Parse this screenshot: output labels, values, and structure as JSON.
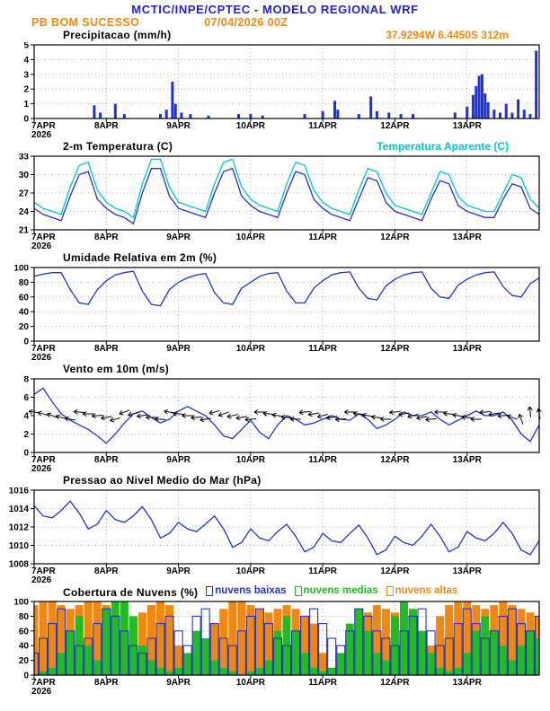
{
  "header": {
    "title": "MCTIC/INPE/CPTEC - MODELO REGIONAL WRF",
    "station": "PB BOM SUCESSO",
    "run": "07/04/2026 00Z",
    "location": "37.9294W 6.4450S 312m"
  },
  "time_axis": {
    "hours_total": 168,
    "tick_hours": [
      0,
      24,
      48,
      72,
      96,
      120,
      144
    ],
    "tick_labels": [
      "7APR",
      "8APR",
      "9APR",
      "10APR",
      "11APR",
      "12APR",
      "13APR"
    ],
    "year_label": "2026"
  },
  "chart_data": [
    {
      "id": "precipitation",
      "type": "bar",
      "title": "Precipitacao (mm/h)",
      "ylim": [
        0,
        5
      ],
      "yticks": [
        0,
        1,
        2,
        3,
        4,
        5
      ],
      "color": "#2233cc",
      "points": [
        {
          "h": 20,
          "v": 0.9
        },
        {
          "h": 22,
          "v": 0.4
        },
        {
          "h": 27,
          "v": 1.0
        },
        {
          "h": 30,
          "v": 0.3
        },
        {
          "h": 42,
          "v": 0.3
        },
        {
          "h": 44,
          "v": 0.6
        },
        {
          "h": 46,
          "v": 2.5
        },
        {
          "h": 47,
          "v": 1.0
        },
        {
          "h": 49,
          "v": 0.4
        },
        {
          "h": 52,
          "v": 0.3
        },
        {
          "h": 58,
          "v": 0.2
        },
        {
          "h": 68,
          "v": 0.3
        },
        {
          "h": 72,
          "v": 0.3
        },
        {
          "h": 76,
          "v": 0.2
        },
        {
          "h": 90,
          "v": 0.3
        },
        {
          "h": 96,
          "v": 0.5
        },
        {
          "h": 100,
          "v": 1.2
        },
        {
          "h": 101,
          "v": 0.6
        },
        {
          "h": 108,
          "v": 0.3
        },
        {
          "h": 112,
          "v": 1.5
        },
        {
          "h": 114,
          "v": 0.5
        },
        {
          "h": 118,
          "v": 0.4
        },
        {
          "h": 122,
          "v": 0.3
        },
        {
          "h": 126,
          "v": 0.3
        },
        {
          "h": 140,
          "v": 0.4
        },
        {
          "h": 144,
          "v": 0.8
        },
        {
          "h": 146,
          "v": 1.6
        },
        {
          "h": 147,
          "v": 2.2
        },
        {
          "h": 148,
          "v": 2.9
        },
        {
          "h": 149,
          "v": 3.0
        },
        {
          "h": 150,
          "v": 1.7
        },
        {
          "h": 151,
          "v": 1.1
        },
        {
          "h": 153,
          "v": 0.6
        },
        {
          "h": 155,
          "v": 0.4
        },
        {
          "h": 157,
          "v": 1.0
        },
        {
          "h": 159,
          "v": 0.4
        },
        {
          "h": 161,
          "v": 1.3
        },
        {
          "h": 163,
          "v": 0.6
        },
        {
          "h": 165,
          "v": 0.3
        },
        {
          "h": 167,
          "v": 4.6
        }
      ]
    },
    {
      "id": "temperature-2m",
      "type": "line",
      "title": "2-m Temperatura (C)",
      "legend_right": "Temperatura Aparente (C)",
      "ylim": [
        21,
        33
      ],
      "yticks": [
        21,
        24,
        27,
        30,
        33
      ],
      "step_h": 3,
      "series": [
        {
          "name": "2-m Temperatura (C)",
          "color": "#2233cc",
          "values": [
            24.5,
            23.5,
            23.0,
            22.5,
            26.5,
            30.0,
            30.5,
            26.0,
            24.5,
            23.5,
            23.0,
            22.0,
            27.0,
            31.0,
            31.0,
            26.5,
            24.5,
            24.0,
            23.5,
            23.0,
            27.0,
            30.5,
            31.0,
            26.5,
            25.0,
            24.0,
            23.5,
            23.0,
            27.0,
            30.5,
            30.0,
            26.0,
            24.5,
            23.5,
            23.0,
            22.5,
            26.0,
            29.5,
            29.0,
            25.5,
            24.0,
            23.5,
            23.0,
            22.5,
            26.0,
            29.0,
            28.5,
            25.0,
            24.0,
            23.5,
            23.0,
            23.0,
            26.0,
            28.5,
            28.0,
            24.5,
            23.5
          ]
        },
        {
          "name": "Temperatura Aparente (C)",
          "color": "#00c8c8",
          "values": [
            25.5,
            24.5,
            24.0,
            23.5,
            28.0,
            31.5,
            32.0,
            27.5,
            25.5,
            24.5,
            24.0,
            23.0,
            28.5,
            32.5,
            32.5,
            28.0,
            25.5,
            25.0,
            24.5,
            24.0,
            28.5,
            32.0,
            32.5,
            28.0,
            26.0,
            25.0,
            24.5,
            24.0,
            28.5,
            32.0,
            31.5,
            27.5,
            25.5,
            24.5,
            24.0,
            23.5,
            27.5,
            31.0,
            30.5,
            27.0,
            25.0,
            24.5,
            24.0,
            23.5,
            27.0,
            30.5,
            30.0,
            26.5,
            25.0,
            24.5,
            24.0,
            24.0,
            27.0,
            30.0,
            29.5,
            26.0,
            24.5
          ]
        }
      ]
    },
    {
      "id": "relative-humidity-2m",
      "type": "line",
      "title": "Umidade Relativa em 2m (%)",
      "ylim": [
        0,
        100
      ],
      "yticks": [
        0,
        20,
        40,
        60,
        80,
        100
      ],
      "step_h": 3,
      "series": [
        {
          "name": "Umidade Relativa em 2m (%)",
          "color": "#2233cc",
          "values": [
            88,
            91,
            93,
            93,
            70,
            52,
            50,
            70,
            82,
            90,
            93,
            95,
            68,
            50,
            48,
            70,
            80,
            86,
            90,
            92,
            66,
            52,
            50,
            72,
            80,
            88,
            92,
            93,
            68,
            52,
            52,
            72,
            82,
            90,
            93,
            94,
            72,
            58,
            56,
            75,
            84,
            90,
            93,
            94,
            72,
            60,
            58,
            76,
            84,
            90,
            93,
            94,
            74,
            62,
            60,
            78,
            86
          ]
        }
      ]
    },
    {
      "id": "wind-10m",
      "type": "line",
      "title": "Vento em 10m (m/s)",
      "ylim": [
        0,
        8
      ],
      "yticks": [
        0,
        2,
        4,
        6,
        8
      ],
      "step_h": 3,
      "series": [
        {
          "name": "Vento em 10m (m/s)",
          "color": "#2233cc",
          "values": [
            6.3,
            7.0,
            5.5,
            4.2,
            3.5,
            3.0,
            2.5,
            1.8,
            1.0,
            2.0,
            3.2,
            4.2,
            4.5,
            3.8,
            3.2,
            3.6,
            4.5,
            5.0,
            4.5,
            4.0,
            3.0,
            1.8,
            1.5,
            2.5,
            3.5,
            2.2,
            1.5,
            3.0,
            4.0,
            3.6,
            3.0,
            3.2,
            3.6,
            4.0,
            3.6,
            3.5,
            4.2,
            3.6,
            2.6,
            3.0,
            3.6,
            4.4,
            4.0,
            4.0,
            4.4,
            3.6,
            3.0,
            3.5,
            4.0,
            4.5,
            4.0,
            4.0,
            4.4,
            3.5,
            2.0,
            1.2,
            3.0
          ]
        }
      ],
      "barbs": {
        "level": 4,
        "step_h": 3,
        "color": "#000000",
        "angles": [
          190,
          195,
          200,
          195,
          190,
          185,
          180,
          175,
          170,
          165,
          160,
          165,
          170,
          180,
          185,
          190,
          185,
          180,
          175,
          170,
          165,
          160,
          165,
          170,
          175,
          180,
          185,
          190,
          185,
          180,
          175,
          170,
          165,
          170,
          175,
          180,
          185,
          190,
          185,
          180,
          175,
          170,
          165,
          170,
          175,
          180,
          185,
          190,
          185,
          180,
          175,
          170,
          175,
          200,
          250,
          265,
          260
        ]
      }
    },
    {
      "id": "mslp",
      "type": "line",
      "title": "Pressao ao Nivel Medio do Mar (hPa)",
      "ylim": [
        1008,
        1016
      ],
      "yticks": [
        1008,
        1010,
        1012,
        1014,
        1016
      ],
      "step_h": 3,
      "series": [
        {
          "name": "Pressao ao Nivel Medio do Mar (hPa)",
          "color": "#2233cc",
          "values": [
            1014.3,
            1013.2,
            1013.0,
            1013.8,
            1014.8,
            1013.5,
            1011.8,
            1012.3,
            1013.8,
            1012.8,
            1012.5,
            1013.2,
            1014.2,
            1012.8,
            1010.8,
            1011.3,
            1012.5,
            1011.8,
            1011.5,
            1012.3,
            1013.2,
            1011.8,
            1009.8,
            1010.3,
            1011.8,
            1010.8,
            1010.5,
            1011.5,
            1012.3,
            1011.0,
            1009.3,
            1009.8,
            1011.3,
            1010.5,
            1010.3,
            1011.3,
            1012.2,
            1010.8,
            1009.0,
            1009.5,
            1011.0,
            1010.3,
            1010.0,
            1011.0,
            1012.3,
            1011.0,
            1009.3,
            1009.8,
            1011.5,
            1010.8,
            1010.5,
            1011.3,
            1012.5,
            1011.3,
            1009.5,
            1009.0,
            1010.5
          ]
        }
      ]
    },
    {
      "id": "cloud-cover",
      "type": "cloud",
      "title": "Cobertura de Nuvens (%)",
      "ylim": [
        0,
        100
      ],
      "yticks": [
        0,
        20,
        40,
        60,
        80,
        100
      ],
      "step_h": 3,
      "series": [
        {
          "name": "nuvens baixas",
          "color": "#2233cc",
          "style": "outline",
          "values": [
            30,
            50,
            70,
            90,
            60,
            40,
            50,
            70,
            90,
            80,
            60,
            40,
            30,
            50,
            70,
            80,
            60,
            40,
            80,
            90,
            70,
            50,
            40,
            60,
            80,
            90,
            70,
            50,
            40,
            60,
            80,
            90,
            70,
            50,
            40,
            60,
            90,
            80,
            60,
            50,
            40,
            60,
            80,
            90,
            60,
            40,
            50,
            70,
            90,
            70,
            50,
            60,
            80,
            90,
            70,
            60,
            80
          ]
        },
        {
          "name": "nuvens medias",
          "color": "#22bb22",
          "style": "fill",
          "values": [
            0,
            5,
            10,
            30,
            60,
            80,
            40,
            20,
            90,
            100,
            100,
            80,
            40,
            20,
            10,
            5,
            10,
            30,
            60,
            50,
            20,
            10,
            5,
            0,
            5,
            10,
            20,
            60,
            80,
            60,
            30,
            10,
            5,
            10,
            30,
            70,
            90,
            60,
            30,
            20,
            80,
            100,
            90,
            60,
            30,
            10,
            5,
            10,
            30,
            60,
            80,
            60,
            40,
            20,
            40,
            60,
            50
          ]
        },
        {
          "name": "nuvens altas",
          "color": "#ee8811",
          "style": "fill",
          "values": [
            95,
            100,
            100,
            95,
            90,
            95,
            100,
            100,
            95,
            80,
            60,
            70,
            85,
            95,
            100,
            95,
            40,
            20,
            10,
            30,
            70,
            90,
            100,
            100,
            95,
            90,
            85,
            90,
            95,
            90,
            80,
            70,
            30,
            10,
            5,
            20,
            60,
            85,
            95,
            90,
            85,
            60,
            20,
            10,
            40,
            80,
            95,
            100,
            100,
            95,
            90,
            95,
            100,
            95,
            90,
            85,
            80
          ]
        }
      ]
    }
  ]
}
